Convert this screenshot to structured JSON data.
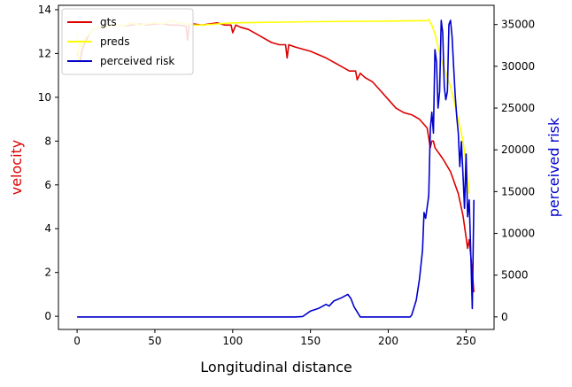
{
  "chart_data": {
    "type": "line",
    "xlabel": "Longitudinal distance",
    "ylabel_left": "velocity",
    "ylabel_right": "perceived risk",
    "xlim": [
      -12,
      268
    ],
    "ylim_left": [
      -0.6,
      14.2
    ],
    "ylim_right": [
      -1500,
      37300
    ],
    "x_ticks": [
      0,
      50,
      100,
      150,
      200,
      250
    ],
    "y_ticks_left": [
      0,
      2,
      4,
      6,
      8,
      10,
      12,
      14
    ],
    "y_ticks_right": [
      0,
      5000,
      10000,
      15000,
      20000,
      25000,
      30000,
      35000
    ],
    "grid": false,
    "legend_position": "top-left",
    "colors": {
      "gts": "#dd0000",
      "preds": "#ffff00",
      "perceived_risk": "#0000cc",
      "left_label": "#dd0000",
      "right_label": "#0000cc"
    },
    "series": [
      {
        "name": "gts",
        "axis": "left",
        "x": [
          0,
          2,
          3,
          5,
          8,
          10,
          15,
          20,
          25,
          30,
          35,
          40,
          45,
          50,
          55,
          60,
          65,
          70,
          71,
          72,
          75,
          80,
          85,
          90,
          95,
          99,
          100,
          102,
          105,
          110,
          115,
          120,
          125,
          130,
          134,
          135,
          136,
          140,
          145,
          150,
          155,
          160,
          165,
          170,
          175,
          179,
          180,
          182,
          185,
          190,
          195,
          200,
          205,
          210,
          215,
          220,
          225,
          227,
          228,
          229,
          230,
          232,
          235,
          240,
          245,
          248,
          250,
          251,
          252,
          253,
          254,
          255
        ],
        "values": [
          12.0,
          11.6,
          12.1,
          12.5,
          12.9,
          13.1,
          13.2,
          13.25,
          13.3,
          13.25,
          13.3,
          13.35,
          13.3,
          13.35,
          13.35,
          13.3,
          13.3,
          13.25,
          12.6,
          13.3,
          13.35,
          13.3,
          13.35,
          13.4,
          13.3,
          13.3,
          12.95,
          13.3,
          13.2,
          13.1,
          12.9,
          12.7,
          12.5,
          12.4,
          12.4,
          11.8,
          12.4,
          12.3,
          12.2,
          12.1,
          11.95,
          11.8,
          11.6,
          11.4,
          11.2,
          11.2,
          10.8,
          11.1,
          10.9,
          10.7,
          10.3,
          9.9,
          9.5,
          9.3,
          9.2,
          9.0,
          8.6,
          7.7,
          8.0,
          8.0,
          7.7,
          7.5,
          7.2,
          6.6,
          5.6,
          4.6,
          3.6,
          3.1,
          3.5,
          2.8,
          2.0,
          1.1
        ]
      },
      {
        "name": "preds",
        "axis": "left",
        "x": [
          0,
          1,
          2,
          3,
          5,
          8,
          10,
          15,
          20,
          25,
          30,
          35,
          40,
          45,
          50,
          55,
          60,
          65,
          70,
          75,
          80,
          90,
          100,
          150,
          200,
          225,
          226,
          227,
          228,
          230,
          232,
          235,
          240,
          245,
          248,
          250,
          252
        ],
        "values": [
          12.9,
          11.6,
          12.5,
          12.3,
          12.7,
          12.9,
          13.1,
          13.2,
          13.25,
          13.3,
          13.25,
          13.4,
          13.3,
          13.35,
          13.4,
          13.35,
          13.5,
          13.4,
          13.35,
          13.3,
          13.3,
          13.35,
          13.4,
          13.45,
          13.48,
          13.5,
          13.55,
          13.4,
          13.3,
          12.9,
          12.3,
          11.5,
          10.5,
          9.0,
          8.0,
          7.0,
          5.6
        ]
      },
      {
        "name": "perceived risk",
        "axis": "right",
        "x": [
          0,
          20,
          50,
          100,
          140,
          145,
          150,
          155,
          160,
          162,
          165,
          170,
          174,
          176,
          178,
          180,
          182,
          185,
          190,
          200,
          210,
          214,
          215,
          218,
          220,
          222,
          223,
          224,
          226,
          227,
          228,
          229,
          230,
          231,
          232,
          233,
          234,
          235,
          236,
          237,
          238,
          239,
          240,
          241,
          242,
          243,
          244,
          245,
          246,
          247,
          248,
          249,
          250,
          251,
          252,
          253,
          254,
          255
        ],
        "values": [
          0,
          0,
          0,
          0,
          0,
          50,
          700,
          1000,
          1500,
          1300,
          1900,
          2300,
          2700,
          2200,
          1200,
          600,
          0,
          0,
          0,
          0,
          0,
          0,
          200,
          2000,
          4500,
          8000,
          12500,
          11800,
          14500,
          22500,
          24500,
          22000,
          32000,
          30500,
          25000,
          27000,
          35500,
          34000,
          27500,
          26000,
          27000,
          35000,
          35500,
          33500,
          30000,
          26500,
          24000,
          22000,
          18000,
          21000,
          17000,
          13000,
          19500,
          12000,
          14000,
          8000,
          1000,
          14000
        ]
      }
    ]
  }
}
